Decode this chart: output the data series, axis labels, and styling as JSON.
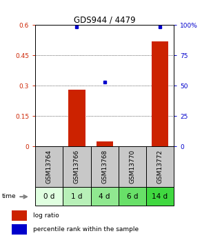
{
  "title": "GDS944 / 4479",
  "samples": [
    "GSM13764",
    "GSM13766",
    "GSM13768",
    "GSM13770",
    "GSM13772"
  ],
  "time_labels": [
    "0 d",
    "1 d",
    "4 d",
    "6 d",
    "14 d"
  ],
  "log_ratio": [
    0.0,
    0.28,
    0.025,
    0.0,
    0.52
  ],
  "percentile_rank": [
    null,
    98.5,
    53.0,
    null,
    98.5
  ],
  "ylim_left": [
    0,
    0.6
  ],
  "ylim_right": [
    0,
    100
  ],
  "yticks_left": [
    0,
    0.15,
    0.3,
    0.45,
    0.6
  ],
  "yticks_right": [
    0,
    25,
    50,
    75,
    100
  ],
  "ytick_labels_left": [
    "0",
    "0.15",
    "0.3",
    "0.45",
    "0.6"
  ],
  "ytick_labels_right": [
    "0",
    "25",
    "50",
    "75",
    "100%"
  ],
  "bar_color": "#cc2200",
  "dot_color": "#0000cc",
  "bar_width": 0.6,
  "sample_bg_color": "#c8c8c8",
  "time_bg_colors": [
    "#e0ffe0",
    "#b8f0b8",
    "#90e890",
    "#68e068",
    "#40d840"
  ],
  "legend_bar_label": "log ratio",
  "legend_dot_label": "percentile rank within the sample",
  "title_fontsize": 8.5,
  "tick_fontsize": 6.5,
  "label_fontsize": 6.5,
  "time_fontsize": 7.5,
  "legend_fontsize": 6.5
}
